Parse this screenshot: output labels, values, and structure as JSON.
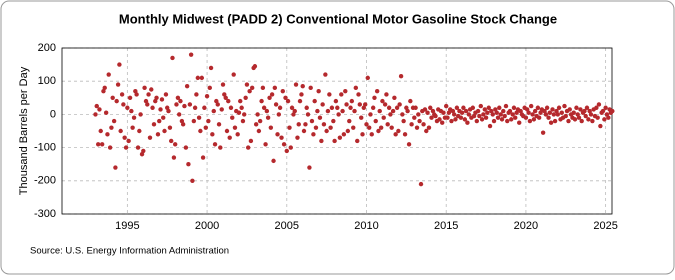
{
  "chart_data": {
    "type": "scatter",
    "title": "Monthly Midwest (PADD 2) Conventional Motor Gasoline Stock Change",
    "ylabel": "Thousand Barrels per Day",
    "source": "Source: U.S. Energy Information Administration",
    "grid": true,
    "xlim": [
      1990.9,
      2025.4
    ],
    "xticks": [
      1995,
      2000,
      2005,
      2010,
      2015,
      2020,
      2025
    ],
    "ylim": [
      -300,
      200
    ],
    "yticks": [
      -300,
      -200,
      -100,
      0,
      100,
      200
    ],
    "series": [
      {
        "name": "Stock Change",
        "color": "#b5292d",
        "x": [
          1993,
          1993.08,
          1993.17,
          1993.25,
          1993.33,
          1993.42,
          1993.5,
          1993.58,
          1993.67,
          1993.75,
          1993.83,
          1993.92,
          1994,
          1994.08,
          1994.17,
          1994.25,
          1994.33,
          1994.42,
          1994.5,
          1994.58,
          1994.67,
          1994.75,
          1994.83,
          1994.92,
          1995,
          1995.08,
          1995.17,
          1995.25,
          1995.33,
          1995.42,
          1995.5,
          1995.58,
          1995.67,
          1995.75,
          1995.83,
          1995.92,
          1996,
          1996.08,
          1996.17,
          1996.25,
          1996.33,
          1996.42,
          1996.5,
          1996.58,
          1996.67,
          1996.75,
          1996.83,
          1996.92,
          1997,
          1997.08,
          1997.17,
          1997.25,
          1997.33,
          1997.42,
          1997.5,
          1997.58,
          1997.67,
          1997.75,
          1997.83,
          1997.92,
          1998,
          1998.08,
          1998.17,
          1998.25,
          1998.33,
          1998.42,
          1998.5,
          1998.58,
          1998.67,
          1998.75,
          1998.83,
          1998.92,
          1999,
          1999.08,
          1999.17,
          1999.25,
          1999.33,
          1999.42,
          1999.5,
          1999.58,
          1999.67,
          1999.75,
          1999.83,
          1999.92,
          2000,
          2000.08,
          2000.17,
          2000.25,
          2000.33,
          2000.42,
          2000.5,
          2000.58,
          2000.67,
          2000.75,
          2000.83,
          2000.92,
          2001,
          2001.08,
          2001.17,
          2001.25,
          2001.33,
          2001.42,
          2001.5,
          2001.58,
          2001.67,
          2001.75,
          2001.83,
          2001.92,
          2002,
          2002.08,
          2002.17,
          2002.25,
          2002.33,
          2002.42,
          2002.5,
          2002.58,
          2002.67,
          2002.75,
          2002.83,
          2002.92,
          2003,
          2003.08,
          2003.17,
          2003.25,
          2003.33,
          2003.42,
          2003.5,
          2003.58,
          2003.67,
          2003.75,
          2003.83,
          2003.92,
          2004,
          2004.08,
          2004.17,
          2004.25,
          2004.33,
          2004.42,
          2004.5,
          2004.58,
          2004.67,
          2004.75,
          2004.83,
          2004.92,
          2005,
          2005.08,
          2005.17,
          2005.25,
          2005.33,
          2005.42,
          2005.5,
          2005.58,
          2005.67,
          2005.75,
          2005.83,
          2005.92,
          2006,
          2006.08,
          2006.17,
          2006.25,
          2006.33,
          2006.42,
          2006.5,
          2006.58,
          2006.67,
          2006.75,
          2006.83,
          2006.92,
          2007,
          2007.08,
          2007.17,
          2007.25,
          2007.33,
          2007.42,
          2007.5,
          2007.58,
          2007.67,
          2007.75,
          2007.83,
          2007.92,
          2008,
          2008.08,
          2008.17,
          2008.25,
          2008.33,
          2008.42,
          2008.5,
          2008.58,
          2008.67,
          2008.75,
          2008.83,
          2008.92,
          2009,
          2009.08,
          2009.17,
          2009.25,
          2009.33,
          2009.42,
          2009.5,
          2009.58,
          2009.67,
          2009.75,
          2009.83,
          2009.92,
          2010,
          2010.08,
          2010.17,
          2010.25,
          2010.33,
          2010.42,
          2010.5,
          2010.58,
          2010.67,
          2010.75,
          2010.83,
          2010.92,
          2011,
          2011.08,
          2011.17,
          2011.25,
          2011.33,
          2011.42,
          2011.5,
          2011.58,
          2011.67,
          2011.75,
          2011.83,
          2011.92,
          2012,
          2012.08,
          2012.17,
          2012.25,
          2012.33,
          2012.42,
          2012.5,
          2012.58,
          2012.67,
          2012.75,
          2012.83,
          2012.92,
          2013,
          2013.08,
          2013.17,
          2013.25,
          2013.33,
          2013.42,
          2013.5,
          2013.58,
          2013.67,
          2013.75,
          2013.83,
          2013.92,
          2014,
          2014.08,
          2014.17,
          2014.25,
          2014.33,
          2014.42,
          2014.5,
          2014.58,
          2014.67,
          2014.75,
          2014.83,
          2014.92,
          2015,
          2015.08,
          2015.17,
          2015.25,
          2015.33,
          2015.42,
          2015.5,
          2015.58,
          2015.67,
          2015.75,
          2015.83,
          2015.92,
          2016,
          2016.08,
          2016.17,
          2016.25,
          2016.33,
          2016.42,
          2016.5,
          2016.58,
          2016.67,
          2016.75,
          2016.83,
          2016.92,
          2017,
          2017.08,
          2017.17,
          2017.25,
          2017.33,
          2017.42,
          2017.5,
          2017.58,
          2017.67,
          2017.75,
          2017.83,
          2017.92,
          2018,
          2018.08,
          2018.17,
          2018.25,
          2018.33,
          2018.42,
          2018.5,
          2018.58,
          2018.67,
          2018.75,
          2018.83,
          2018.92,
          2019,
          2019.08,
          2019.17,
          2019.25,
          2019.33,
          2019.42,
          2019.5,
          2019.58,
          2019.67,
          2019.75,
          2019.83,
          2019.92,
          2020,
          2020.08,
          2020.17,
          2020.25,
          2020.33,
          2020.42,
          2020.5,
          2020.58,
          2020.67,
          2020.75,
          2020.83,
          2020.92,
          2021,
          2021.08,
          2021.17,
          2021.25,
          2021.33,
          2021.42,
          2021.5,
          2021.58,
          2021.67,
          2021.75,
          2021.83,
          2021.92,
          2022,
          2022.08,
          2022.17,
          2022.25,
          2022.33,
          2022.42,
          2022.5,
          2022.58,
          2022.67,
          2022.75,
          2022.83,
          2022.92,
          2023,
          2023.08,
          2023.17,
          2023.25,
          2023.33,
          2023.42,
          2023.5,
          2023.58,
          2023.67,
          2023.75,
          2023.83,
          2023.92,
          2024,
          2024.08,
          2024.17,
          2024.25,
          2024.33,
          2024.42,
          2024.5,
          2024.58,
          2024.67,
          2024.75,
          2024.83,
          2024.92,
          2025,
          2025.08,
          2025.17,
          2025.25,
          2025.33,
          2025.42
        ],
        "values": [
          0,
          25,
          -90,
          15,
          -50,
          -90,
          70,
          80,
          5,
          -60,
          120,
          -100,
          -40,
          50,
          -20,
          -160,
          40,
          90,
          150,
          -50,
          60,
          30,
          -70,
          -100,
          20,
          -80,
          50,
          10,
          -40,
          -10,
          70,
          60,
          -100,
          -50,
          0,
          -120,
          -110,
          80,
          40,
          30,
          60,
          -70,
          75,
          20,
          -30,
          40,
          50,
          -60,
          -20,
          15,
          45,
          -10,
          -50,
          60,
          20,
          10,
          -40,
          -80,
          170,
          -130,
          -90,
          30,
          50,
          0,
          40,
          -20,
          -30,
          25,
          -100,
          85,
          -150,
          30,
          180,
          -200,
          -20,
          20,
          60,
          110,
          -10,
          -50,
          110,
          -130,
          20,
          -40,
          55,
          -20,
          80,
          140,
          -60,
          10,
          -90,
          40,
          30,
          -30,
          -100,
          15,
          90,
          60,
          50,
          -50,
          40,
          -70,
          20,
          -10,
          120,
          -40,
          10,
          -60,
          5,
          40,
          20,
          -20,
          0,
          50,
          90,
          -100,
          70,
          -80,
          80,
          140,
          145,
          -30,
          0,
          -50,
          -20,
          40,
          80,
          20,
          -90,
          10,
          -10,
          50,
          -40,
          60,
          -140,
          80,
          30,
          -60,
          0,
          20,
          -70,
          70,
          -90,
          50,
          -110,
          40,
          -40,
          -100,
          20,
          0,
          10,
          90,
          -70,
          -30,
          40,
          60,
          85,
          -50,
          -30,
          20,
          0,
          -160,
          80,
          -20,
          -60,
          40,
          -40,
          10,
          70,
          -10,
          -80,
          30,
          -30,
          120,
          -50,
          10,
          60,
          -40,
          20,
          -20,
          -80,
          40,
          20,
          0,
          -70,
          60,
          10,
          -60,
          70,
          30,
          -50,
          -20,
          20,
          40,
          -40,
          10,
          80,
          -80,
          60,
          30,
          -10,
          -60,
          20,
          30,
          -30,
          110,
          -40,
          0,
          -60,
          20,
          50,
          -20,
          70,
          -50,
          10,
          -40,
          40,
          -10,
          30,
          60,
          -30,
          20,
          0,
          -40,
          10,
          50,
          -60,
          20,
          -50,
          30,
          115,
          0,
          -20,
          -60,
          20,
          10,
          -90,
          40,
          -30,
          20,
          -10,
          20,
          -40,
          0,
          -20,
          -210,
          10,
          -30,
          15,
          -50,
          5,
          -40,
          20,
          -10,
          10,
          0,
          -5,
          -20,
          15,
          -15,
          10,
          -25,
          5,
          -10,
          25,
          -10,
          5,
          15,
          -20,
          10,
          0,
          -15,
          20,
          -5,
          10,
          -10,
          5,
          20,
          -15,
          10,
          -25,
          0,
          15,
          -10,
          20,
          -5,
          5,
          -20,
          10,
          -5,
          25,
          -15,
          0,
          15,
          -10,
          5,
          20,
          -35,
          10,
          0,
          -20,
          15,
          5,
          -10,
          20,
          0,
          -15,
          10,
          -5,
          25,
          -20,
          5,
          10,
          -15,
          0,
          20,
          -10,
          5,
          15,
          -25,
          10,
          0,
          -5,
          20,
          -10,
          15,
          5,
          -20,
          25,
          0,
          -15,
          10,
          -5,
          20,
          -10,
          5,
          15,
          -55,
          10,
          0,
          20,
          -10,
          5,
          -25,
          15,
          0,
          -20,
          10,
          0,
          20,
          -15,
          5,
          -10,
          25,
          -5,
          10,
          -20,
          15,
          0,
          -10,
          5,
          -15,
          20,
          0,
          -10,
          15,
          -20,
          5,
          10,
          -5,
          20,
          -15,
          10,
          0,
          -20,
          15,
          -5,
          20,
          -10,
          30,
          -35,
          5,
          10,
          -15,
          20,
          0,
          -10,
          15,
          5,
          10
        ]
      }
    ]
  }
}
